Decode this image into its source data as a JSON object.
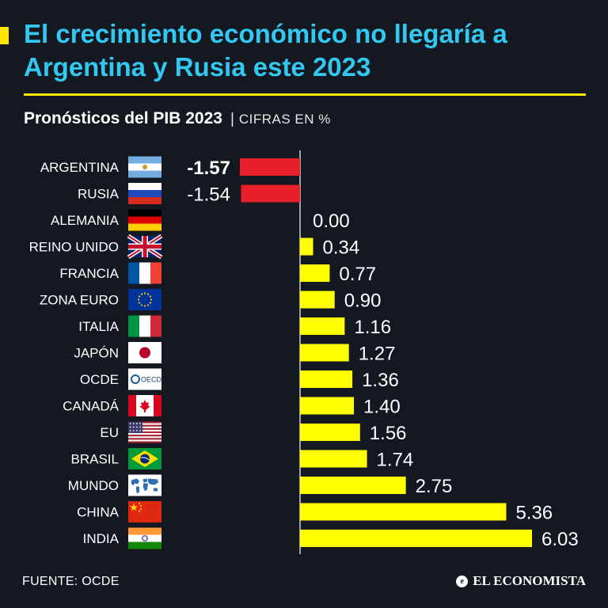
{
  "header": {
    "title": "El crecimiento económico no llegaría a Argentina y Rusia este 2023"
  },
  "colors": {
    "background": "#141820",
    "title": "#33c8f2",
    "accent": "#ffe600",
    "positive_bar": "#ffff00",
    "negative_bar": "#e8202a"
  },
  "chart_data": {
    "type": "bar",
    "orientation": "horizontal",
    "title": "Pronósticos del PIB 2023",
    "unit_label": "CIFRAS EN %",
    "categories": [
      "ARGENTINA",
      "RUSIA",
      "ALEMANIA",
      "REINO UNIDO",
      "FRANCIA",
      "ZONA EURO",
      "ITALIA",
      "JAPÓN",
      "OCDE",
      "CANADÁ",
      "EU",
      "BRASIL",
      "MUNDO",
      "CHINA",
      "INDIA"
    ],
    "values": [
      -1.57,
      -1.54,
      0.0,
      0.34,
      0.77,
      0.9,
      1.16,
      1.27,
      1.36,
      1.4,
      1.56,
      1.74,
      2.75,
      5.36,
      6.03
    ],
    "value_labels": [
      "-1.57",
      "-1.54",
      "0.00",
      "0.34",
      "0.77",
      "0.90",
      "1.16",
      "1.27",
      "1.36",
      "1.40",
      "1.56",
      "1.74",
      "2.75",
      "5.36",
      "6.03"
    ],
    "flags": [
      "argentina-flag",
      "russia-flag",
      "germany-flag",
      "uk-flag",
      "france-flag",
      "eu-flag",
      "italy-flag",
      "japan-flag",
      "oecd-logo",
      "canada-flag",
      "usa-flag",
      "brazil-flag",
      "world-map-icon",
      "china-flag",
      "india-flag"
    ],
    "oecd_text": "OECD",
    "xlim": [
      -1.57,
      6.03
    ],
    "grid": false,
    "legend": "none"
  },
  "footer": {
    "source": "FUENTE: OCDE",
    "brand": "EL ECONOMISTA",
    "brand_icon_glyph": "e"
  }
}
